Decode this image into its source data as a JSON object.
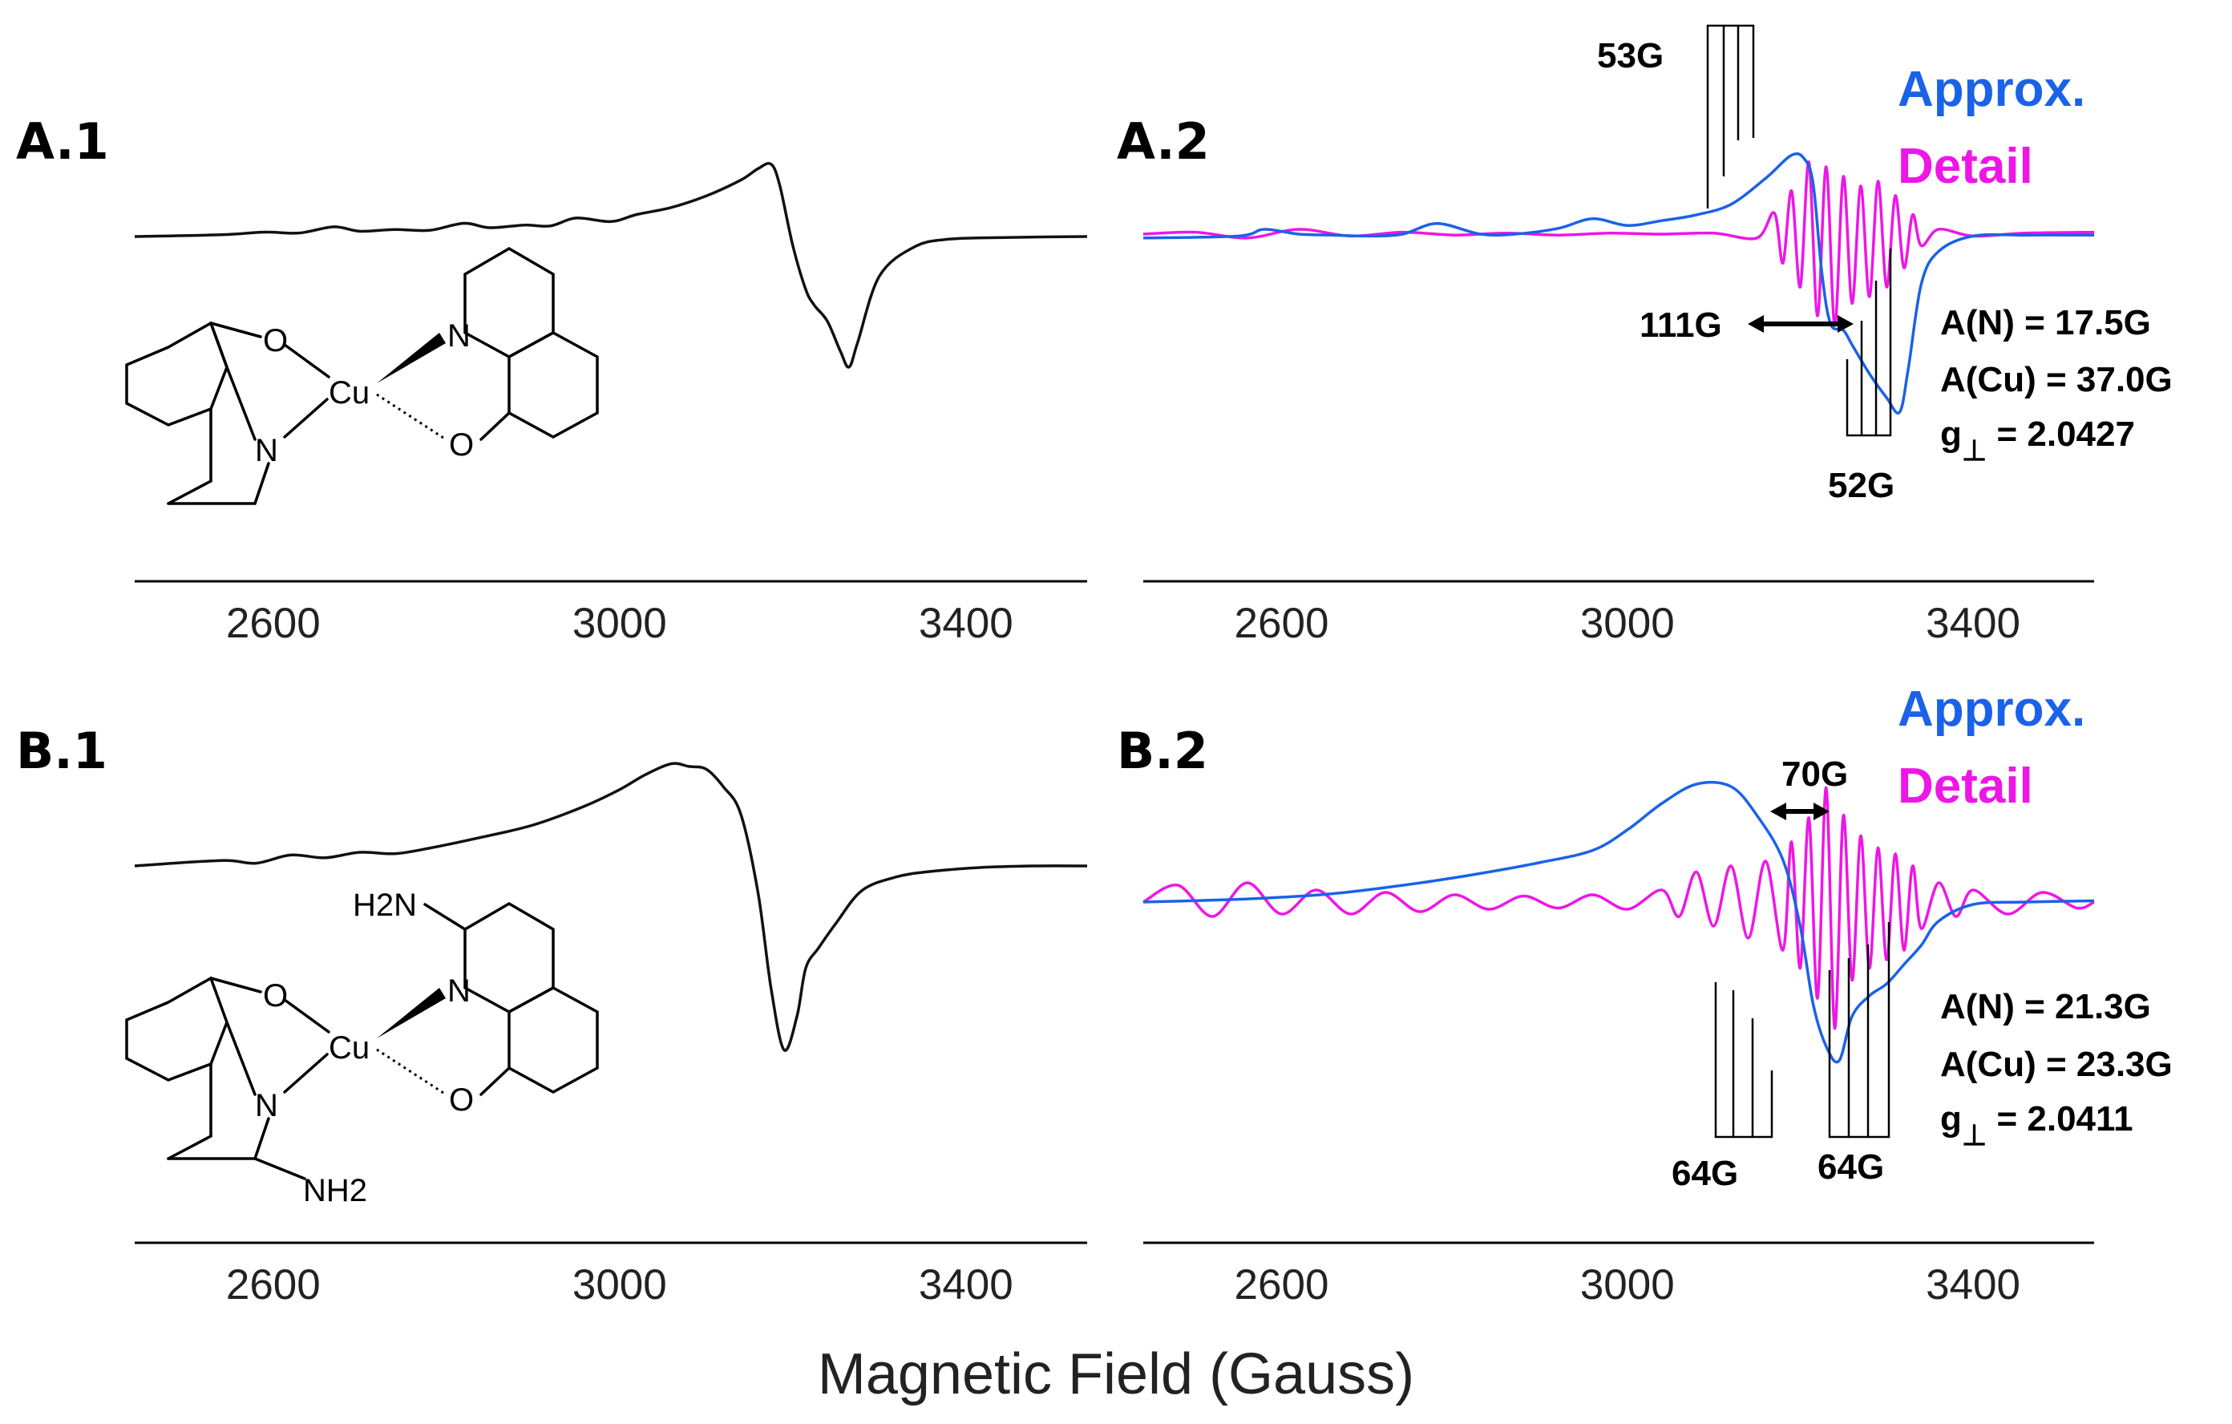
{
  "xlabel": "Magnetic Field (Gauss)",
  "colors": {
    "approx": "#1a62e8",
    "detail": "#ee16e6",
    "spectrum": "#111111"
  },
  "panels": [
    {
      "id": "A.1",
      "label": "A.1",
      "molecule": "Cu(8-hydroxyquinolinate)2"
    },
    {
      "id": "A.2",
      "label": "A.2",
      "legend": {
        "approx": "Approx.",
        "detail": "Detail"
      },
      "params": {
        "an": "A(N) = 17.5G",
        "acu": "A(Cu) = 37.0G",
        "g_prefix": "g",
        "g_sub": "⊥",
        "g_value": " = 2.0427"
      },
      "annotations": {
        "top_split": "53G",
        "mid_split": "111G",
        "bottom_split": "52G"
      }
    },
    {
      "id": "B.1",
      "label": "B.1",
      "molecule": "Cu(2-amino-8-hydroxyquinolinate)2"
    },
    {
      "id": "B.2",
      "label": "B.2",
      "legend": {
        "approx": "Approx.",
        "detail": "Detail"
      },
      "params": {
        "an": "A(N) = 21.3G",
        "acu": "A(Cu) = 23.3G",
        "g_prefix": "g",
        "g_sub": "⊥",
        "g_value": " = 2.0411"
      },
      "annotations": {
        "top_split": "70G",
        "left_split": "64G",
        "right_split": "64G"
      }
    }
  ],
  "atoms": {
    "O": "O",
    "N": "N",
    "Cu": "Cu",
    "H2N": "H2N",
    "NH2": "NH2"
  },
  "chart_data": [
    {
      "type": "line",
      "panel": "A.1",
      "xlim": [
        2440,
        3540
      ],
      "xticks": [
        2600,
        3000,
        3400
      ],
      "xticklabels": [
        "2600",
        "3000",
        "3400"
      ],
      "series": [
        {
          "x": [
            2440,
            2540,
            2590,
            2630,
            2670,
            2700,
            2740,
            2780,
            2820,
            2850,
            2890,
            2920,
            2950,
            2990,
            3020,
            3060,
            3100,
            3140,
            3160,
            3175,
            3185,
            3200,
            3215,
            3225,
            3240,
            3255,
            3265,
            3275,
            3300,
            3340,
            3380,
            3450,
            3540
          ],
          "y": [
            0.0,
            0.02,
            0.05,
            0.04,
            0.11,
            0.06,
            0.08,
            0.07,
            0.15,
            0.1,
            0.13,
            0.12,
            0.21,
            0.17,
            0.25,
            0.33,
            0.46,
            0.64,
            0.77,
            0.82,
            0.58,
            -0.1,
            -0.6,
            -0.78,
            -0.96,
            -1.3,
            -1.48,
            -1.2,
            -0.45,
            -0.12,
            -0.03,
            -0.01,
            0.0
          ]
        }
      ]
    },
    {
      "type": "line",
      "panel": "A.2",
      "xlim": [
        2440,
        3540
      ],
      "xticks": [
        2600,
        3000,
        3400
      ],
      "xticklabels": [
        "2600",
        "3000",
        "3400"
      ],
      "series": [
        {
          "key": "approx",
          "x": [
            2440,
            2550,
            2580,
            2620,
            2660,
            2700,
            2740,
            2780,
            2830,
            2870,
            2920,
            2960,
            3000,
            3040,
            3080,
            3120,
            3160,
            3190,
            3205,
            3215,
            3225,
            3235,
            3250,
            3260,
            3280,
            3300,
            3315,
            3325,
            3340,
            3360,
            3400,
            3460,
            3540
          ],
          "y": [
            -0.04,
            -0.02,
            0.05,
            0.0,
            -0.01,
            -0.02,
            0.0,
            0.11,
            0.0,
            0.0,
            0.06,
            0.16,
            0.09,
            0.14,
            0.2,
            0.31,
            0.58,
            0.82,
            0.78,
            0.52,
            -0.4,
            -0.93,
            -1.0,
            -1.15,
            -1.45,
            -1.7,
            -1.85,
            -1.4,
            -0.52,
            -0.18,
            -0.02,
            -0.01,
            -0.01
          ]
        },
        {
          "key": "detail",
          "x": [
            2440,
            2500,
            2560,
            2620,
            2680,
            2740,
            2800,
            2860,
            2920,
            2980,
            3040,
            3100,
            3150,
            3170,
            3180,
            3190,
            3200,
            3210,
            3220,
            3230,
            3240,
            3250,
            3260,
            3270,
            3280,
            3290,
            3300,
            3310,
            3320,
            3330,
            3340,
            3360,
            3400,
            3460,
            3540
          ],
          "y": [
            0.0,
            0.02,
            -0.04,
            0.05,
            -0.02,
            0.02,
            -0.01,
            0.01,
            -0.01,
            0.01,
            0.0,
            0.01,
            -0.04,
            0.22,
            -0.3,
            0.45,
            -0.55,
            0.75,
            -0.85,
            0.7,
            -0.95,
            0.6,
            -0.72,
            0.5,
            -0.65,
            0.55,
            -0.55,
            0.4,
            -0.35,
            0.2,
            -0.12,
            0.05,
            -0.02,
            0.01,
            0.02
          ]
        }
      ]
    },
    {
      "type": "line",
      "panel": "B.1",
      "xlim": [
        2440,
        3540
      ],
      "xticks": [
        2600,
        3000,
        3400
      ],
      "xticklabels": [
        "2600",
        "3000",
        "3400"
      ],
      "series": [
        {
          "x": [
            2440,
            2540,
            2580,
            2620,
            2660,
            2700,
            2740,
            2780,
            2840,
            2900,
            2960,
            3000,
            3030,
            3060,
            3080,
            3100,
            3120,
            3140,
            3160,
            3175,
            3190,
            3205,
            3215,
            3230,
            3250,
            3280,
            3320,
            3360,
            3420,
            3480,
            3540
          ],
          "y": [
            0.0,
            0.04,
            0.02,
            0.08,
            0.06,
            0.1,
            0.09,
            0.13,
            0.21,
            0.3,
            0.44,
            0.56,
            0.67,
            0.75,
            0.73,
            0.71,
            0.58,
            0.38,
            -0.2,
            -0.9,
            -1.35,
            -1.1,
            -0.75,
            -0.6,
            -0.42,
            -0.18,
            -0.08,
            -0.04,
            -0.01,
            0.0,
            0.0
          ]
        }
      ]
    },
    {
      "type": "line",
      "panel": "B.2",
      "xlim": [
        2440,
        3540
      ],
      "xticks": [
        2600,
        3000,
        3400
      ],
      "xticklabels": [
        "2600",
        "3000",
        "3400"
      ],
      "series": [
        {
          "key": "approx",
          "x": [
            2440,
            2540,
            2600,
            2660,
            2720,
            2780,
            2840,
            2900,
            2960,
            3000,
            3040,
            3080,
            3120,
            3150,
            3180,
            3200,
            3215,
            3230,
            3245,
            3260,
            3280,
            3300,
            3320,
            3340,
            3360,
            3400,
            3460,
            3540
          ],
          "y": [
            0.0,
            0.02,
            0.04,
            0.07,
            0.12,
            0.18,
            0.25,
            0.33,
            0.43,
            0.6,
            0.82,
            0.98,
            0.96,
            0.72,
            0.35,
            -0.2,
            -0.85,
            -1.2,
            -1.32,
            -0.95,
            -0.78,
            -0.68,
            -0.52,
            -0.36,
            -0.16,
            -0.02,
            0.0,
            0.01
          ]
        },
        {
          "key": "detail",
          "x": [
            2440,
            2480,
            2520,
            2560,
            2600,
            2640,
            2680,
            2720,
            2760,
            2800,
            2840,
            2880,
            2920,
            2960,
            3000,
            3040,
            3060,
            3080,
            3100,
            3120,
            3140,
            3160,
            3180,
            3190,
            3200,
            3210,
            3220,
            3230,
            3240,
            3250,
            3260,
            3270,
            3280,
            3290,
            3300,
            3310,
            3320,
            3330,
            3340,
            3360,
            3380,
            3400,
            3440,
            3480,
            3520,
            3540
          ],
          "y": [
            0.0,
            0.14,
            -0.12,
            0.16,
            -0.1,
            0.1,
            -0.1,
            0.08,
            -0.08,
            0.06,
            -0.06,
            0.05,
            -0.05,
            0.06,
            -0.06,
            0.1,
            -0.12,
            0.25,
            -0.2,
            0.3,
            -0.3,
            0.34,
            -0.4,
            0.5,
            -0.55,
            0.7,
            -0.8,
            0.95,
            -1.05,
            0.72,
            -0.65,
            0.55,
            -0.55,
            0.45,
            -0.48,
            0.4,
            -0.4,
            0.3,
            -0.22,
            0.16,
            -0.12,
            0.1,
            -0.1,
            0.08,
            -0.05,
            0.0
          ]
        }
      ]
    }
  ]
}
